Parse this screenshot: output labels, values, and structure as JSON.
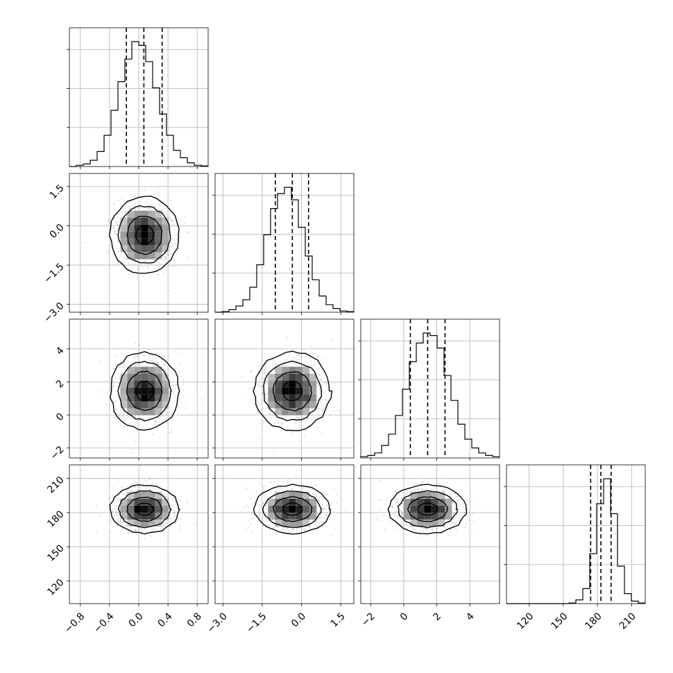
{
  "chart_data": {
    "type": "corner",
    "title": "",
    "parameters": [
      {
        "range": [
          -0.95,
          0.95
        ],
        "ticks": [
          -0.8,
          -0.4,
          0.0,
          0.4,
          0.8
        ],
        "tick_labels": [
          "−0.8",
          "−0.4",
          "0.0",
          "0.4",
          "0.8"
        ],
        "mean": 0.08,
        "sd": 0.2,
        "quantiles": [
          -0.17,
          0.07,
          0.32
        ],
        "hist_edges_start": -0.95,
        "hist_bin_width": 0.095,
        "hist_heights": [
          0,
          0.01,
          0.02,
          0.05,
          0.12,
          0.25,
          0.45,
          0.68,
          0.86,
          1.0,
          0.97,
          0.84,
          0.63,
          0.42,
          0.25,
          0.13,
          0.07,
          0.03,
          0.01,
          0.005
        ]
      },
      {
        "range": [
          -3.3,
          2.0
        ],
        "ticks": [
          -3.0,
          -1.5,
          0.0,
          1.5
        ],
        "tick_labels": [
          "−3.0",
          "−1.5",
          "0.0",
          "1.5"
        ],
        "mean": -0.35,
        "sd": 0.62,
        "quantiles": [
          -1.0,
          -0.35,
          0.27
        ],
        "hist_edges_start": -3.3,
        "hist_bin_width": 0.265,
        "hist_heights": [
          0,
          0.005,
          0.02,
          0.05,
          0.1,
          0.2,
          0.38,
          0.62,
          0.83,
          0.95,
          1.0,
          0.9,
          0.68,
          0.45,
          0.26,
          0.13,
          0.06,
          0.03,
          0.01,
          0.005
        ]
      },
      {
        "range": [
          -2.6,
          5.8
        ],
        "ticks": [
          -2,
          0,
          2,
          4
        ],
        "tick_labels": [
          "−2",
          "0",
          "2",
          "4"
        ],
        "mean": 1.45,
        "sd": 1.0,
        "quantiles": [
          0.4,
          1.45,
          2.5
        ],
        "hist_edges_start": -2.6,
        "hist_bin_width": 0.42,
        "hist_heights": [
          0.01,
          0.02,
          0.04,
          0.1,
          0.19,
          0.34,
          0.55,
          0.77,
          0.92,
          1.0,
          0.98,
          0.88,
          0.66,
          0.46,
          0.27,
          0.15,
          0.08,
          0.04,
          0.02,
          0.01
        ]
      },
      {
        "range": [
          100,
          222
        ],
        "ticks": [
          120,
          150,
          180,
          210
        ],
        "tick_labels": [
          "120",
          "150",
          "180",
          "210"
        ],
        "mean": 183,
        "sd": 9,
        "quantiles": [
          174,
          183,
          192
        ],
        "hist_edges_start": 100,
        "hist_bin_width": 6.1,
        "hist_heights": [
          0,
          0,
          0,
          0,
          0,
          0,
          0,
          0,
          0,
          0.005,
          0.03,
          0.12,
          0.4,
          0.8,
          1.0,
          0.72,
          0.3,
          0.08,
          0.02,
          0.005
        ]
      }
    ],
    "grid": true,
    "contour_levels_sigma": [
      0.5,
      1.0,
      1.5,
      2.0
    ]
  }
}
